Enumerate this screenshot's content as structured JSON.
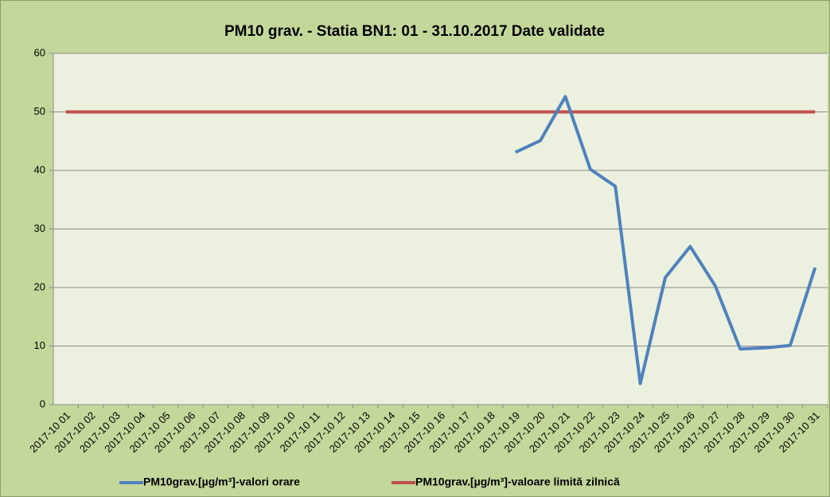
{
  "chart_data": {
    "type": "line",
    "title": "PM10 grav. - Statia BN1: 01 - 31.10.2017 Date validate",
    "categories": [
      "2017-10 01",
      "2017-10 02",
      "2017-10 03",
      "2017-10 04",
      "2017-10 05",
      "2017-10 06",
      "2017-10 07",
      "2017-10 08",
      "2017-10 09",
      "2017-10 10",
      "2017-10 11",
      "2017-10 12",
      "2017-10 13",
      "2017-10 14",
      "2017-10 15",
      "2017-10 16",
      "2017-10 17",
      "2017-10 18",
      "2017-10 19",
      "2017-10 20",
      "2017-10 21",
      "2017-10 22",
      "2017-10 23",
      "2017-10 24",
      "2017-10 25",
      "2017-10 26",
      "2017-10 27",
      "2017-10 28",
      "2017-10 29",
      "2017-10 30",
      "2017-10 31"
    ],
    "series": [
      {
        "name": "PM10grav.[µg/m³]-valori orare",
        "color": "#4f81bd",
        "values": [
          null,
          null,
          null,
          null,
          null,
          null,
          null,
          null,
          null,
          null,
          null,
          null,
          null,
          null,
          null,
          null,
          null,
          null,
          43.1,
          45.1,
          52.6,
          40.2,
          37.3,
          3.6,
          21.7,
          27.0,
          20.3,
          9.5,
          9.7,
          10.1,
          23.4
        ]
      },
      {
        "name": "PM10grav.[µg/m³]-valoare limită zilnică",
        "color": "#c0504d",
        "values": [
          50,
          50,
          50,
          50,
          50,
          50,
          50,
          50,
          50,
          50,
          50,
          50,
          50,
          50,
          50,
          50,
          50,
          50,
          50,
          50,
          50,
          50,
          50,
          50,
          50,
          50,
          50,
          50,
          50,
          50,
          50
        ]
      }
    ],
    "ylim": [
      0,
      60
    ],
    "yticks": [
      0,
      10,
      20,
      30,
      40,
      50,
      60
    ],
    "grid": true,
    "legend": "bottom"
  }
}
